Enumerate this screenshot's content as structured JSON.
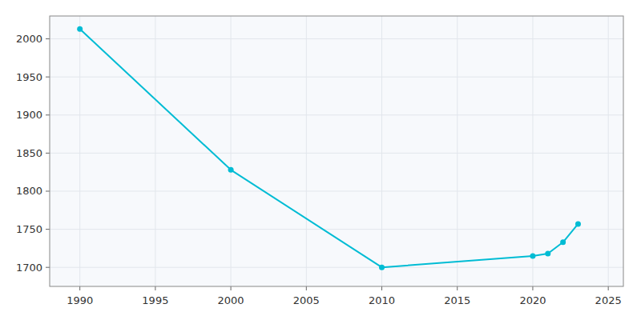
{
  "chart_data": {
    "type": "line",
    "x": [
      1990,
      2000,
      2010,
      2020,
      2021,
      2022,
      2023
    ],
    "values": [
      2013,
      1828,
      1700,
      1715,
      1718,
      1733,
      1757
    ],
    "color": "#00BCD4",
    "marker": "circle",
    "xlim": [
      1988,
      2026
    ],
    "ylim": [
      1675,
      2030
    ],
    "xticks": [
      1990,
      1995,
      2000,
      2005,
      2010,
      2015,
      2020,
      2025
    ],
    "yticks": [
      1700,
      1750,
      1800,
      1850,
      1900,
      1950,
      2000
    ],
    "grid": true
  }
}
